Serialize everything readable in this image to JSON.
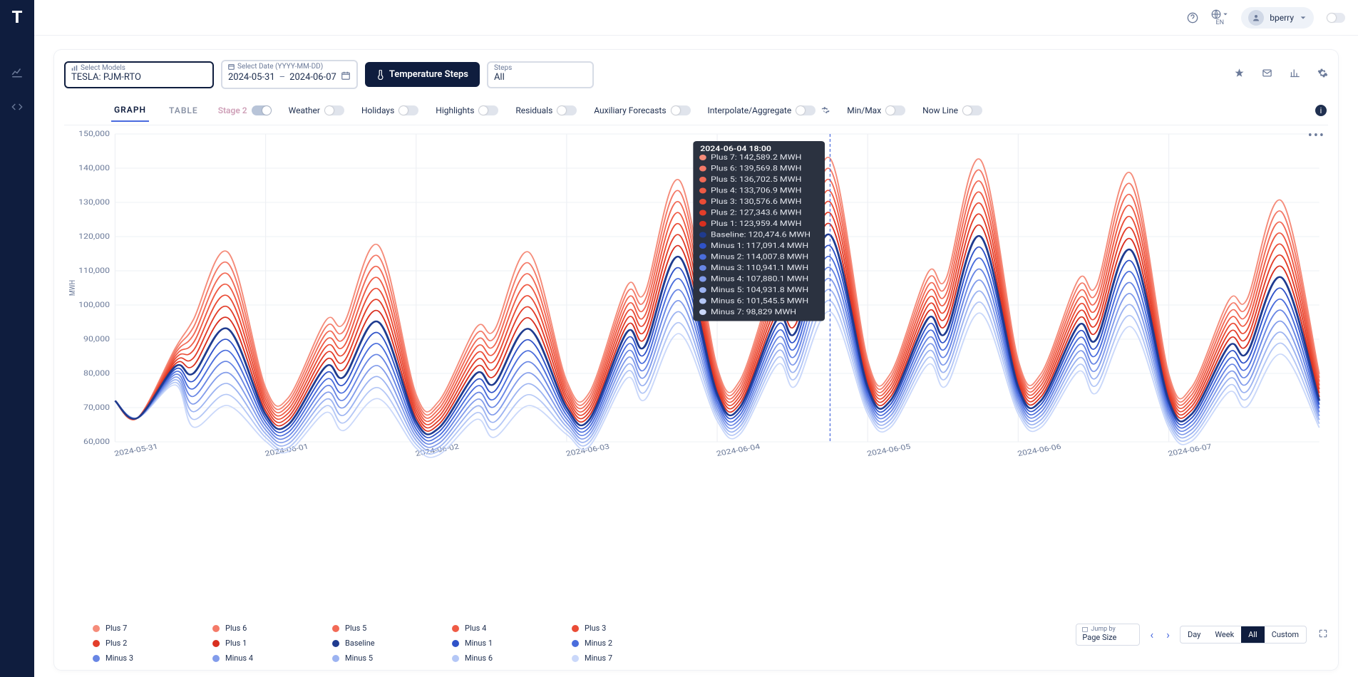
{
  "user": {
    "name": "bperry",
    "lang": "EN"
  },
  "logo": "T",
  "controls": {
    "models": {
      "label": "Select Models",
      "value": "TESLA: PJM-RTO"
    },
    "date": {
      "label": "Select Date (YYYY-MM-DD)",
      "start": "2024-05-31",
      "end": "2024-06-07"
    },
    "button": "Temperature Steps",
    "steps": {
      "label": "Steps",
      "value": "All"
    }
  },
  "tabs": {
    "graph": "GRAPH",
    "table": "TABLE"
  },
  "toggles": {
    "stage2": "Stage 2",
    "weather": "Weather",
    "holidays": "Holidays",
    "highlights": "Highlights",
    "residuals": "Residuals",
    "aux": "Auxiliary Forecasts",
    "interp": "Interpolate/Aggregate",
    "minmax": "Min/Max",
    "now": "Now Line"
  },
  "chart": {
    "ylabel": "MWH",
    "ylim": [
      60000,
      150000
    ],
    "ytick_step": 10000,
    "grid_color": "#eef0f4",
    "x_categories": [
      "2024-05-31",
      "2024-06-01",
      "2024-06-02",
      "2024-06-03",
      "2024-06-04",
      "2024-06-05",
      "2024-06-06",
      "2024-06-07"
    ],
    "hover_x": 4.75,
    "hover_date": "2024-06-04 18:00",
    "series": [
      {
        "name": "Plus 7",
        "color": "#f58c7a"
      },
      {
        "name": "Plus 6",
        "color": "#f47a68"
      },
      {
        "name": "Plus 5",
        "color": "#f26a56"
      },
      {
        "name": "Plus 4",
        "color": "#ef5b45"
      },
      {
        "name": "Plus 3",
        "color": "#ea4c36"
      },
      {
        "name": "Plus 2",
        "color": "#e33e2a"
      },
      {
        "name": "Plus 1",
        "color": "#d92f1f"
      },
      {
        "name": "Baseline",
        "color": "#1f3b8f"
      },
      {
        "name": "Minus 1",
        "color": "#2f52c8"
      },
      {
        "name": "Minus 2",
        "color": "#4a6ddc"
      },
      {
        "name": "Minus 3",
        "color": "#6886e4"
      },
      {
        "name": "Minus 4",
        "color": "#829ceb"
      },
      {
        "name": "Minus 5",
        "color": "#9cb3f1"
      },
      {
        "name": "Minus 6",
        "color": "#b4c7f6"
      },
      {
        "name": "Minus 7",
        "color": "#cad8fa"
      }
    ],
    "baseline_daily": [
      {
        "start": 72000,
        "trough": 67000,
        "peak1": 82000,
        "dip": 80000,
        "peak2": 93000,
        "end": 68000
      },
      {
        "start": 68000,
        "trough": 65000,
        "peak1": 82000,
        "dip": 79000,
        "peak2": 95000,
        "end": 66000
      },
      {
        "start": 66000,
        "trough": 64000,
        "peak1": 80000,
        "dip": 77000,
        "peak2": 93000,
        "end": 70000
      },
      {
        "start": 70000,
        "trough": 66500,
        "peak1": 92000,
        "dip": 88000,
        "peak2": 114000,
        "end": 74000
      },
      {
        "start": 74000,
        "trough": 70000,
        "peak1": 96000,
        "dip": 92000,
        "peak2": 120474,
        "end": 76000
      },
      {
        "start": 76000,
        "trough": 72000,
        "peak1": 96000,
        "dip": 92000,
        "peak2": 120000,
        "end": 76000
      },
      {
        "start": 76000,
        "trough": 72000,
        "peak1": 94000,
        "dip": 90000,
        "peak2": 116000,
        "end": 72000
      },
      {
        "start": 72000,
        "trough": 68000,
        "peak1": 88000,
        "dip": 86000,
        "peak2": 108000,
        "end": 72000
      }
    ],
    "tooltip_values": [
      {
        "name": "Plus 7",
        "val": "142,589.2 MWH",
        "color": "#f58c7a"
      },
      {
        "name": "Plus 6",
        "val": "139,569.8 MWH",
        "color": "#f47a68"
      },
      {
        "name": "Plus 5",
        "val": "136,702.5 MWH",
        "color": "#f26a56"
      },
      {
        "name": "Plus 4",
        "val": "133,706.9 MWH",
        "color": "#ef5b45"
      },
      {
        "name": "Plus 3",
        "val": "130,576.6 MWH",
        "color": "#ea4c36"
      },
      {
        "name": "Plus 2",
        "val": "127,343.6 MWH",
        "color": "#e33e2a"
      },
      {
        "name": "Plus 1",
        "val": "123,959.4 MWH",
        "color": "#d92f1f"
      },
      {
        "name": "Baseline",
        "val": "120,474.6 MWH",
        "color": "#1f3b8f"
      },
      {
        "name": "Minus 1",
        "val": "117,091.4 MWH",
        "color": "#2f52c8"
      },
      {
        "name": "Minus 2",
        "val": "114,007.8 MWH",
        "color": "#4a6ddc"
      },
      {
        "name": "Minus 3",
        "val": "110,941.1 MWH",
        "color": "#6886e4"
      },
      {
        "name": "Minus 4",
        "val": "107,880.1 MWH",
        "color": "#829ceb"
      },
      {
        "name": "Minus 5",
        "val": "104,931.8 MWH",
        "color": "#9cb3f1"
      },
      {
        "name": "Minus 6",
        "val": "101,545.5 MWH",
        "color": "#b4c7f6"
      },
      {
        "name": "Minus 7",
        "val": "98,829 MWH",
        "color": "#cad8fa"
      }
    ]
  },
  "pager": {
    "jump_label": "Jump by",
    "jump_value": "Page Size",
    "segments": {
      "day": "Day",
      "week": "Week",
      "all": "All",
      "custom": "Custom"
    },
    "active": "all"
  }
}
